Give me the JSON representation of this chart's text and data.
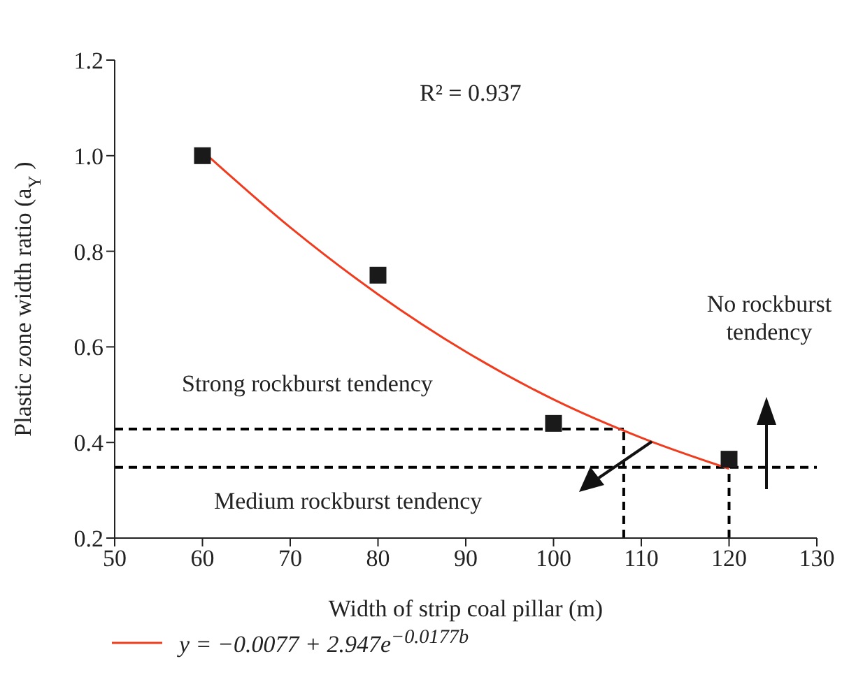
{
  "chart_data": {
    "type": "scatter",
    "xlabel": "Width of strip coal pillar (m)",
    "ylabel": "Plastic zone width ratio (a$_{Y}$)",
    "xlim": [
      50,
      130
    ],
    "xticks": [
      50,
      60,
      70,
      80,
      90,
      100,
      110,
      120,
      130
    ],
    "ylim": [
      0.2,
      1.2
    ],
    "yticks": [
      0.2,
      0.4,
      0.6,
      0.8,
      {
        "value": 1,
        "label": "1.0"
      },
      1.2
    ],
    "legend": "bottom",
    "x": [
      60,
      80,
      100,
      120
    ],
    "series": [
      {
        "marker": "square",
        "color": "#1a1a1a",
        "values": [
          1.0,
          0.75,
          0.44,
          0.365
        ]
      },
      {
        "type": "line",
        "name": "y = −0.0077 + 2.947e$^{−0.0177b}$",
        "color": "#f03c1e",
        "x": [
          60,
          70,
          80,
          90,
          100,
          110,
          120
        ],
        "values": [
          1.01,
          0.85,
          0.71,
          0.59,
          0.49,
          0.41,
          0.345
        ]
      }
    ],
    "ref_lines": [
      {
        "axis": "y",
        "value": 0.428,
        "color": "#000000",
        "line_style": "dashed"
      },
      {
        "axis": "y",
        "value": 0.348,
        "color": "#000000",
        "line_style": "dashed"
      },
      {
        "axis": "x",
        "value": 108,
        "color": "#000000",
        "line_style": "dashed"
      },
      {
        "axis": "x",
        "value": 120,
        "color": "#000000",
        "line_style": "dashed"
      }
    ],
    "annotations": [
      "R² = 0.937",
      "Strong rockburst tendency",
      "Medium rockburst tendency",
      "No rockburst tendency"
    ]
  }
}
